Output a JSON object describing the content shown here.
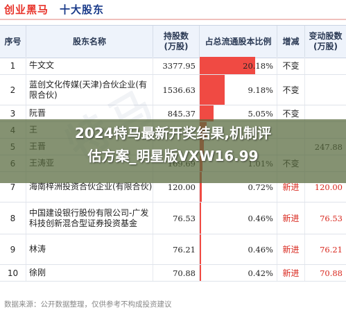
{
  "header": {
    "brand": "创业黑马",
    "title": "十大股东",
    "accent": "#e8332a"
  },
  "columns": {
    "index": "序号",
    "name": "股东名称",
    "shares": "持股数\n(万股)",
    "ratio": "占总流通股本比例",
    "change_type": "增减",
    "change_shares": "变动股数\n(万股)"
  },
  "rows": [
    {
      "index": "1",
      "name": "牛文文",
      "shares": "3377.95",
      "ratio": "20.18%",
      "ratio_value": 20.18,
      "change_type": "不变",
      "change_shares": ""
    },
    {
      "index": "2",
      "name": "蓝创文化传媒(天津)合伙企业(有限合伙)",
      "shares": "1536.63",
      "ratio": "9.18%",
      "ratio_value": 9.18,
      "change_type": "不变",
      "change_shares": ""
    },
    {
      "index": "3",
      "name": "阮晋",
      "shares": "845.37",
      "ratio": "5.05%",
      "ratio_value": 5.05,
      "change_type": "不变",
      "change_shares": ""
    },
    {
      "index": "4",
      "name": "王",
      "shares": "",
      "ratio": "",
      "ratio_value": 2.4,
      "change_type": "",
      "change_shares": ""
    },
    {
      "index": "5",
      "name": "王晋",
      "shares": "",
      "ratio": "",
      "ratio_value": 1.6,
      "change_type": "",
      "change_shares": "247.88"
    },
    {
      "index": "6",
      "name": "王涛亚",
      "shares": "169.69",
      "ratio": "1.01%",
      "ratio_value": 1.01,
      "change_type": "不变",
      "change_shares": ""
    },
    {
      "index": "7",
      "name": "海南梓洲投资合伙企业(有限合伙)",
      "shares": "120.00",
      "ratio": "0.72%",
      "ratio_value": 0.72,
      "change_type": "新进",
      "change_shares": "120.00"
    },
    {
      "index": "8",
      "name": "中国建设银行股份有限公司-广发科技创新混合型证券投资基金",
      "shares": "76.53",
      "ratio": "0.46%",
      "ratio_value": 0.46,
      "change_type": "新进",
      "change_shares": "76.53"
    },
    {
      "index": "9",
      "name": "林涛",
      "shares": "76.21",
      "ratio": "0.46%",
      "ratio_value": 0.46,
      "change_type": "新进",
      "change_shares": "76.21"
    },
    {
      "index": "10",
      "name": "徐刚",
      "shares": "70.88",
      "ratio": "0.42%",
      "ratio_value": 0.42,
      "change_type": "新进",
      "change_shares": "70.88"
    }
  ],
  "overlay": {
    "line1": "2024特马最新开奖结果,机制评",
    "line2": "估方案_明星版VXW16.99"
  },
  "watermark": "特马",
  "footer": "数据来源：公开数据整理，仅供参考不构成投资建议",
  "colors": {
    "bar": "#f04a43",
    "new_entry": "#d8261c",
    "header_bg": "#eef3fb"
  }
}
